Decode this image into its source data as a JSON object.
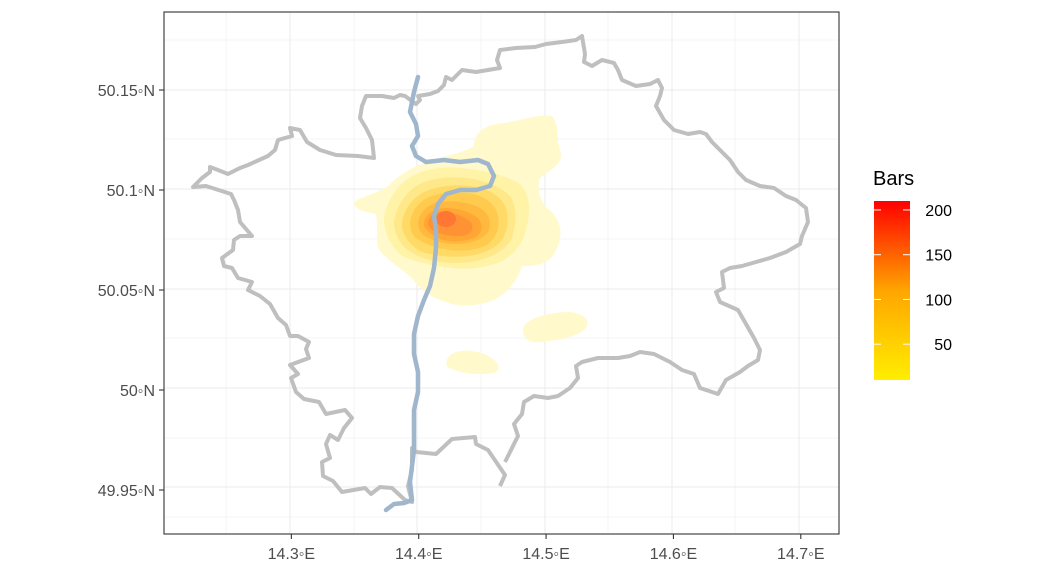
{
  "map": {
    "legend": {
      "title": "Bars",
      "min": 10,
      "max": 210,
      "ticks": [
        {
          "value": 50,
          "label": "50"
        },
        {
          "value": 100,
          "label": "100"
        },
        {
          "value": 150,
          "label": "150"
        },
        {
          "value": 200,
          "label": "200"
        }
      ],
      "colors": [
        "#ffee00",
        "#ff0000"
      ]
    },
    "axes": {
      "x_ticks": [
        {
          "value": 14.3,
          "label": "14.3◦E"
        },
        {
          "value": 14.4,
          "label": "14.4◦E"
        },
        {
          "value": 14.5,
          "label": "14.5◦E"
        },
        {
          "value": 14.6,
          "label": "14.6◦E"
        },
        {
          "value": 14.7,
          "label": "14.7◦E"
        }
      ],
      "y_ticks": [
        {
          "value": 50.15,
          "label": "50.15◦N"
        },
        {
          "value": 50.1,
          "label": "50.1◦N"
        },
        {
          "value": 50.05,
          "label": "50.05◦N"
        },
        {
          "value": 50.0,
          "label": "50◦N"
        },
        {
          "value": 49.95,
          "label": "49.95◦N"
        }
      ],
      "xlim": [
        14.2,
        14.73
      ],
      "ylim": [
        49.928,
        50.189
      ]
    },
    "colors": {
      "boundary": "#bfbfbf",
      "river": "#9fb6cd",
      "grid": "#ebebeb",
      "frame": "#333333"
    }
  }
}
